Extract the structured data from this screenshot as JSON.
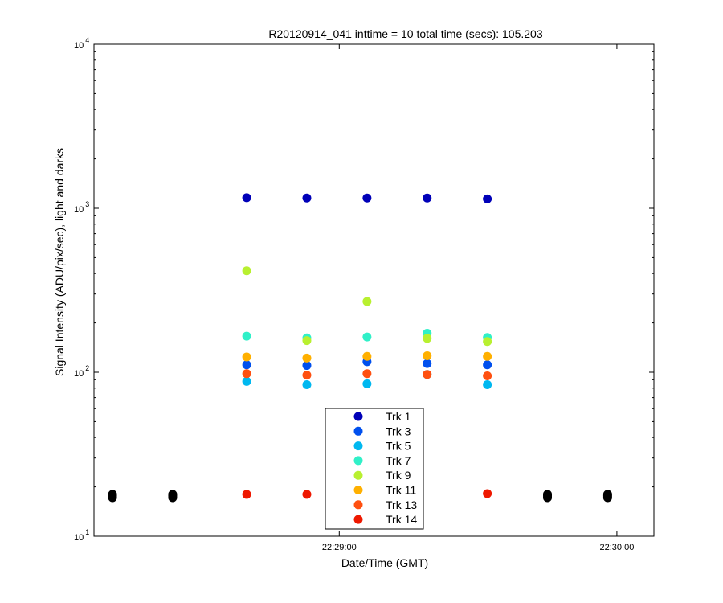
{
  "chart_data": {
    "type": "scatter",
    "title": "R20120914_041 inttime = 10 total time (secs): 105.203",
    "xlabel": "Date/Time (GMT)",
    "ylabel": "Signal Intensity (ADU/pix/sec), light and darks",
    "yscale": "log",
    "ylim": [
      10,
      10000
    ],
    "xlim": [
      "22:28:07",
      "22:30:08"
    ],
    "x_ticks": [
      {
        "value": "22:29:00",
        "label": "22:29:00"
      },
      {
        "value": "22:30:00",
        "label": "22:30:00"
      }
    ],
    "y_ticks": [
      {
        "base": "10",
        "exp": "1",
        "value": 10
      },
      {
        "base": "10",
        "exp": "2",
        "value": 100
      },
      {
        "base": "10",
        "exp": "3",
        "value": 1000
      },
      {
        "base": "10",
        "exp": "4",
        "value": 10000
      }
    ],
    "grid": false,
    "legend_position": "lower-center",
    "series": [
      {
        "name": "Trk 1",
        "color": "#0000b8",
        "points": [
          [
            "22:28:40",
            1160
          ],
          [
            "22:28:53",
            1155
          ],
          [
            "22:29:06",
            1155
          ],
          [
            "22:29:19",
            1155
          ],
          [
            "22:29:32",
            1140
          ]
        ]
      },
      {
        "name": "Trk 3",
        "color": "#0050ee",
        "points": [
          [
            "22:28:40",
            111
          ],
          [
            "22:28:53",
            110
          ],
          [
            "22:29:06",
            116
          ],
          [
            "22:29:19",
            113
          ],
          [
            "22:29:32",
            111
          ]
        ]
      },
      {
        "name": "Trk 5",
        "color": "#00b8f0",
        "points": [
          [
            "22:28:40",
            88
          ],
          [
            "22:28:53",
            84
          ],
          [
            "22:29:06",
            85
          ],
          [
            "22:29:19",
            97
          ],
          [
            "22:29:32",
            84
          ]
        ]
      },
      {
        "name": "Trk 7",
        "color": "#30f0c8",
        "points": [
          [
            "22:28:40",
            166
          ],
          [
            "22:28:53",
            162
          ],
          [
            "22:29:06",
            164
          ],
          [
            "22:29:19",
            173
          ],
          [
            "22:29:32",
            163
          ]
        ]
      },
      {
        "name": "Trk 9",
        "color": "#b8f030",
        "points": [
          [
            "22:28:40",
            416
          ],
          [
            "22:28:53",
            156
          ],
          [
            "22:29:06",
            270
          ],
          [
            "22:29:19",
            161
          ],
          [
            "22:29:32",
            154
          ]
        ]
      },
      {
        "name": "Trk 11",
        "color": "#ffb000",
        "points": [
          [
            "22:28:40",
            124
          ],
          [
            "22:28:53",
            122
          ],
          [
            "22:29:06",
            125
          ],
          [
            "22:29:19",
            126
          ],
          [
            "22:29:32",
            125
          ]
        ]
      },
      {
        "name": "Trk 13",
        "color": "#ff5010",
        "points": [
          [
            "22:28:40",
            98
          ],
          [
            "22:28:53",
            96
          ],
          [
            "22:29:06",
            98
          ],
          [
            "22:29:19",
            97
          ],
          [
            "22:29:32",
            95
          ]
        ]
      },
      {
        "name": "Trk 14",
        "color": "#ee1800",
        "points": [
          [
            "22:28:40",
            18
          ],
          [
            "22:28:53",
            18
          ],
          [
            "22:29:32",
            18.2
          ]
        ]
      }
    ],
    "dark_series": {
      "color": "#000000",
      "points": [
        [
          "22:28:11",
          17.2
        ],
        [
          "22:28:11",
          17.6
        ],
        [
          "22:28:11",
          18.0
        ],
        [
          "22:28:24",
          17.2
        ],
        [
          "22:28:24",
          17.6
        ],
        [
          "22:28:24",
          18.0
        ],
        [
          "22:29:45",
          17.2
        ],
        [
          "22:29:45",
          17.6
        ],
        [
          "22:29:45",
          18.0
        ],
        [
          "22:29:58",
          17.2
        ],
        [
          "22:29:58",
          17.6
        ],
        [
          "22:29:58",
          18.0
        ]
      ]
    }
  }
}
